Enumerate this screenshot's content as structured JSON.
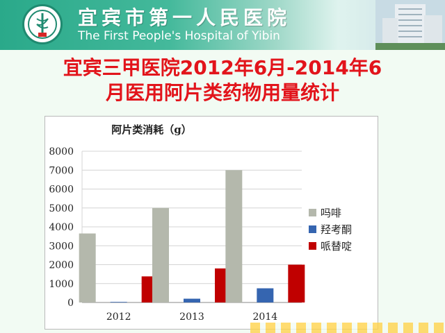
{
  "header": {
    "cn_name": "宜宾市第一人民医院",
    "en_name": "The First People's Hospital of Yibin",
    "logo_icon": "hospital-logo-icon"
  },
  "slide": {
    "title_line1": "宜宾三甲医院2012年6月-2014年6",
    "title_line2": "月医用阿片类药物用量统计"
  },
  "chart_data": {
    "type": "bar",
    "title": "阿片类消耗（g）",
    "categories": [
      "2012",
      "2013",
      "2014"
    ],
    "series": [
      {
        "name": "吗啡",
        "color": "#b4b8ac",
        "values": [
          3650,
          5000,
          7000
        ]
      },
      {
        "name": "羟考酮",
        "color": "#3565b0",
        "values": [
          30,
          200,
          750
        ]
      },
      {
        "name": "哌替啶",
        "color": "#c00000",
        "values": [
          1380,
          1800,
          2000
        ]
      }
    ],
    "ylim": [
      0,
      8000
    ],
    "yticks": [
      0,
      1000,
      2000,
      3000,
      4000,
      5000,
      6000,
      7000,
      8000
    ],
    "grid": true,
    "legend": "right"
  }
}
